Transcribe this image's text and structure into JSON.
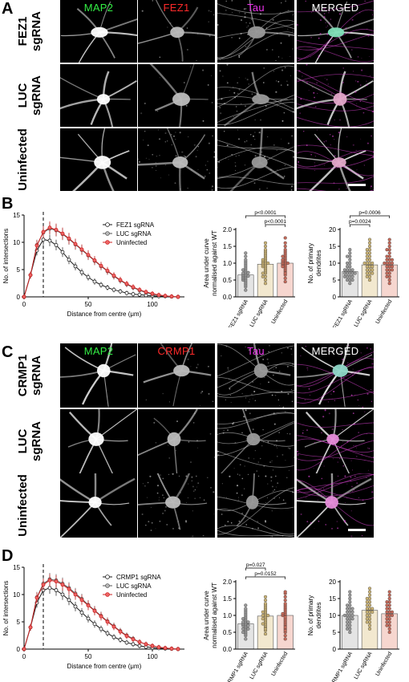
{
  "panels": {
    "A": {
      "letter": "A",
      "columns": [
        {
          "label": "MAP2",
          "color": "#33ee44"
        },
        {
          "label": "FEZ1",
          "color": "#ff2a2a"
        },
        {
          "label": "Tau",
          "color": "#ee33ee"
        },
        {
          "label": "MERGED",
          "color": "#ffffff"
        }
      ],
      "rows": [
        "FEZ1\nsgRNA",
        "LUC\nsgRNA",
        "Uninfected"
      ]
    },
    "B": {
      "letter": "B"
    },
    "C": {
      "letter": "C",
      "columns": [
        {
          "label": "MAP2",
          "color": "#33ee44"
        },
        {
          "label": "CRMP1",
          "color": "#ff2a2a"
        },
        {
          "label": "Tau",
          "color": "#ee33ee"
        },
        {
          "label": "MERGED",
          "color": "#ffffff"
        }
      ],
      "rows": [
        "CRMP1\nsgRNA",
        "LUC\nsgRNA",
        "Uninfected"
      ]
    },
    "D": {
      "letter": "D"
    }
  },
  "chart_data": [
    {
      "id": "B-sholl",
      "type": "line",
      "xlabel": "Distance from centre (μm)",
      "ylabel": "No. of intersections",
      "xlim": [
        0,
        125
      ],
      "ylim": [
        0,
        15
      ],
      "xticks": [
        0,
        50,
        100
      ],
      "yticks": [
        0,
        5,
        10,
        15
      ],
      "dashed_x": 15,
      "legend": "top-right",
      "series": [
        {
          "name": "FEZ1 sgRNA",
          "color": "#1a1a1a",
          "marker": "#ffffff",
          "x": [
            0,
            5,
            10,
            15,
            20,
            25,
            30,
            35,
            40,
            45,
            50,
            55,
            60,
            65,
            70,
            75,
            80,
            85,
            90,
            95,
            100,
            105,
            110,
            115,
            120
          ],
          "y": [
            0,
            4,
            8.5,
            10.5,
            10.3,
            9.5,
            8.2,
            6.8,
            5.6,
            4.5,
            3.6,
            2.8,
            2.2,
            1.7,
            1.3,
            1.0,
            0.7,
            0.5,
            0.4,
            0.3,
            0.2,
            0.1,
            0.1,
            0.05,
            0
          ]
        },
        {
          "name": "LUC sgRNA",
          "color": "#555555",
          "marker": "#bbbbbb",
          "x": [
            0,
            5,
            10,
            15,
            20,
            25,
            30,
            35,
            40,
            45,
            50,
            55,
            60,
            65,
            70,
            75,
            80,
            85,
            90,
            95,
            100,
            105,
            110,
            115,
            120
          ],
          "y": [
            0,
            4,
            9.5,
            11.8,
            12.5,
            12.2,
            11.5,
            10.6,
            9.6,
            8.6,
            7.6,
            6.6,
            5.6,
            4.7,
            3.8,
            3.0,
            2.3,
            1.7,
            1.2,
            0.8,
            0.5,
            0.3,
            0.15,
            0.05,
            0
          ]
        },
        {
          "name": "Uninfected",
          "color": "#cc2222",
          "marker": "#ee6666",
          "x": [
            0,
            5,
            10,
            15,
            20,
            25,
            30,
            35,
            40,
            45,
            50,
            55,
            60,
            65,
            70,
            75,
            80,
            85,
            90,
            95,
            100,
            105,
            110,
            115,
            120
          ],
          "y": [
            0,
            4,
            9.4,
            11.9,
            12.7,
            12.3,
            11.6,
            10.7,
            9.7,
            8.7,
            7.7,
            6.7,
            5.7,
            4.8,
            3.9,
            3.1,
            2.4,
            1.8,
            1.3,
            0.9,
            0.6,
            0.35,
            0.2,
            0.08,
            0
          ]
        }
      ]
    },
    {
      "id": "B-auc",
      "type": "scatter",
      "ylabel": "Area under curve normalised against WT",
      "categories": [
        "FEZ1 sgRNA",
        "LUC sgRNA",
        "Uninfected"
      ],
      "ylim": [
        0,
        2.0
      ],
      "yticks": [
        0.0,
        0.5,
        1.0,
        1.5,
        2.0
      ],
      "means": [
        0.65,
        0.97,
        1.0
      ],
      "bar_fill": [
        "#e4e4e4",
        "#f2e8cf",
        "#f6d6cf"
      ],
      "dot_fill": [
        "#9a9a9a",
        "#c9b275",
        "#c46a5a"
      ],
      "points": [
        [
          0.2,
          0.3,
          0.35,
          0.4,
          0.45,
          0.5,
          0.5,
          0.55,
          0.55,
          0.6,
          0.6,
          0.62,
          0.65,
          0.65,
          0.7,
          0.7,
          0.72,
          0.75,
          0.8,
          0.8,
          0.85,
          0.9,
          0.95,
          1.0,
          1.05,
          1.1,
          1.2,
          1.3
        ],
        [
          0.4,
          0.5,
          0.6,
          0.7,
          0.75,
          0.8,
          0.85,
          0.9,
          0.9,
          0.95,
          0.95,
          1.0,
          1.0,
          1.05,
          1.05,
          1.1,
          1.1,
          1.15,
          1.2,
          1.25,
          1.3,
          1.35,
          1.4,
          1.5,
          1.6,
          0.6,
          0.7,
          1.0
        ],
        [
          0.45,
          0.55,
          0.65,
          0.75,
          0.8,
          0.85,
          0.9,
          0.95,
          0.95,
          1.0,
          1.0,
          1.05,
          1.05,
          1.1,
          1.1,
          1.15,
          1.2,
          1.2,
          1.25,
          1.3,
          1.35,
          1.4,
          1.5,
          1.6,
          1.75,
          0.7,
          0.9,
          1.0
        ]
      ],
      "brackets": [
        {
          "from": 0,
          "to": 2,
          "label": "p<0.0001",
          "level": 2
        },
        {
          "from": 1,
          "to": 2,
          "label": "p<0.0001",
          "level": 1
        }
      ]
    },
    {
      "id": "B-primary",
      "type": "scatter",
      "ylabel": "No. of primary dendrites",
      "categories": [
        "FEZ1 sgRNA",
        "LUC sgRNA",
        "Uninfected"
      ],
      "ylim": [
        0,
        20
      ],
      "yticks": [
        0,
        5,
        10,
        15,
        20
      ],
      "means": [
        7.5,
        9.5,
        9.5
      ],
      "bar_fill": [
        "#e4e4e4",
        "#f2e8cf",
        "#f6d6cf"
      ],
      "dot_fill": [
        "#9a9a9a",
        "#c9b275",
        "#c46a5a"
      ],
      "points": [
        [
          4,
          5,
          5,
          5,
          6,
          6,
          6,
          6,
          7,
          7,
          7,
          7,
          7,
          8,
          8,
          8,
          8,
          9,
          9,
          10,
          10,
          11,
          12,
          12,
          13,
          14
        ],
        [
          5,
          6,
          6,
          7,
          7,
          7,
          8,
          8,
          8,
          9,
          9,
          9,
          10,
          10,
          10,
          10,
          11,
          11,
          12,
          12,
          13,
          13,
          14,
          14,
          15,
          16,
          17
        ],
        [
          4,
          5,
          6,
          6,
          7,
          7,
          8,
          8,
          8,
          9,
          9,
          9,
          10,
          10,
          10,
          10,
          11,
          11,
          11,
          12,
          12,
          13,
          14,
          14,
          15,
          16,
          17
        ]
      ],
      "brackets": [
        {
          "from": 0,
          "to": 2,
          "label": "p=0.0006",
          "level": 2
        },
        {
          "from": 0,
          "to": 1,
          "label": "p=0.0024",
          "level": 1
        }
      ]
    },
    {
      "id": "D-sholl",
      "type": "line",
      "xlabel": "Distance from centre (μm)",
      "ylabel": "No. of intersections",
      "xlim": [
        0,
        125
      ],
      "ylim": [
        0,
        15
      ],
      "xticks": [
        0,
        50,
        100
      ],
      "yticks": [
        0,
        5,
        10,
        15
      ],
      "dashed_x": 15,
      "legend": "top-right",
      "series": [
        {
          "name": "CRMP1 sgRNA",
          "color": "#1a1a1a",
          "marker": "#ffffff",
          "x": [
            0,
            5,
            10,
            15,
            20,
            25,
            30,
            35,
            40,
            45,
            50,
            55,
            60,
            65,
            70,
            75,
            80,
            85,
            90,
            95,
            100,
            105,
            110,
            115,
            120
          ],
          "y": [
            0,
            4,
            8.5,
            10.8,
            11.2,
            10.8,
            10.0,
            9.0,
            7.8,
            6.7,
            5.6,
            4.6,
            3.7,
            2.9,
            2.2,
            1.7,
            1.2,
            0.9,
            0.6,
            0.4,
            0.25,
            0.15,
            0.1,
            0.05,
            0
          ]
        },
        {
          "name": "LUC sgRNA",
          "color": "#555555",
          "marker": "#bbbbbb",
          "x": [
            0,
            5,
            10,
            15,
            20,
            25,
            30,
            35,
            40,
            45,
            50,
            55,
            60,
            65,
            70,
            75,
            80,
            85,
            90,
            95,
            100,
            105,
            110,
            115,
            120
          ],
          "y": [
            0,
            4,
            9.5,
            12.0,
            12.8,
            12.6,
            12.0,
            11.2,
            10.2,
            9.2,
            8.1,
            7.1,
            6.1,
            5.1,
            4.2,
            3.3,
            2.5,
            1.9,
            1.3,
            0.9,
            0.6,
            0.35,
            0.2,
            0.08,
            0
          ]
        },
        {
          "name": "Uninfected",
          "color": "#cc2222",
          "marker": "#ee6666",
          "x": [
            0,
            5,
            10,
            15,
            20,
            25,
            30,
            35,
            40,
            45,
            50,
            55,
            60,
            65,
            70,
            75,
            80,
            85,
            90,
            95,
            100,
            105,
            110,
            115,
            120
          ],
          "y": [
            0,
            4,
            9.4,
            11.8,
            12.6,
            12.4,
            11.8,
            11.0,
            10.0,
            9.0,
            8.0,
            7.0,
            6.0,
            5.0,
            4.1,
            3.2,
            2.4,
            1.8,
            1.3,
            0.9,
            0.6,
            0.35,
            0.2,
            0.08,
            0
          ]
        }
      ]
    },
    {
      "id": "D-auc",
      "type": "scatter",
      "ylabel": "Area under curve normalised against WT",
      "categories": [
        "CRMP1 sgRNA",
        "LUC sgRNA",
        "Uninfected"
      ],
      "ylim": [
        0,
        2.0
      ],
      "yticks": [
        0.0,
        0.5,
        1.0,
        1.5,
        2.0
      ],
      "means": [
        0.75,
        0.98,
        1.0
      ],
      "bar_fill": [
        "#e4e4e4",
        "#f2e8cf",
        "#f6d6cf"
      ],
      "dot_fill": [
        "#9a9a9a",
        "#c9b275",
        "#c46a5a"
      ],
      "points": [
        [
          0.3,
          0.4,
          0.45,
          0.5,
          0.55,
          0.6,
          0.6,
          0.65,
          0.7,
          0.7,
          0.75,
          0.75,
          0.8,
          0.8,
          0.85,
          0.9,
          0.9,
          0.95,
          1.0,
          1.05,
          1.1,
          1.15,
          1.2,
          1.3,
          0.5,
          0.6,
          0.7,
          0.8
        ],
        [
          0.45,
          0.55,
          0.65,
          0.7,
          0.75,
          0.8,
          0.85,
          0.9,
          0.95,
          1.0,
          1.0,
          1.05,
          1.1,
          1.1,
          1.15,
          1.2,
          1.25,
          1.3,
          1.35,
          1.45,
          1.55,
          0.6,
          0.75,
          0.9,
          1.0
        ],
        [
          0.3,
          0.4,
          0.5,
          0.6,
          0.7,
          0.75,
          0.8,
          0.85,
          0.9,
          1.0,
          1.0,
          1.05,
          1.1,
          1.15,
          1.2,
          1.25,
          1.3,
          1.35,
          1.45,
          1.55,
          1.65,
          1.7,
          0.55,
          0.65,
          0.95,
          1.05
        ]
      ],
      "brackets": [
        {
          "from": 0,
          "to": 1,
          "label": "p=0.027",
          "level": 2
        },
        {
          "from": 0,
          "to": 2,
          "label": "p=0.0152",
          "level": 1
        }
      ]
    },
    {
      "id": "D-primary",
      "type": "scatter",
      "ylabel": "No. of primary dendrites",
      "categories": [
        "CRMP1 sgRNA",
        "LUC sgRNA",
        "Uninfected"
      ],
      "ylim": [
        0,
        20
      ],
      "yticks": [
        0,
        5,
        10,
        15,
        20
      ],
      "means": [
        10.0,
        11.5,
        10.5
      ],
      "bar_fill": [
        "#e4e4e4",
        "#f2e8cf",
        "#f6d6cf"
      ],
      "dot_fill": [
        "#9a9a9a",
        "#c9b275",
        "#c46a5a"
      ],
      "points": [
        [
          5,
          6,
          6,
          7,
          7,
          8,
          8,
          9,
          9,
          9,
          10,
          10,
          10,
          10,
          11,
          11,
          11,
          12,
          12,
          12,
          13,
          13,
          14,
          15,
          16,
          17
        ],
        [
          6,
          7,
          8,
          8,
          9,
          9,
          10,
          10,
          11,
          11,
          11,
          12,
          12,
          12,
          13,
          13,
          14,
          14,
          15,
          15,
          16,
          17,
          18
        ],
        [
          5,
          6,
          7,
          7,
          8,
          8,
          9,
          9,
          10,
          10,
          10,
          11,
          11,
          11,
          12,
          12,
          13,
          13,
          14,
          14,
          15,
          16,
          17
        ]
      ],
      "brackets": []
    }
  ]
}
